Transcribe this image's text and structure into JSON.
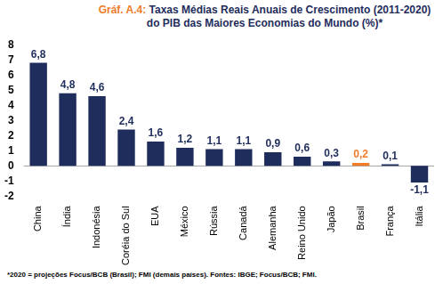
{
  "chart_data": {
    "type": "bar",
    "title": "Gráf. A.4: Taxas Médias Reais Anuais de Crescimento (2011-2020) do PIB das Maiores Economias do Mundo (%)*",
    "footnote": "*2020 = projeções Focus/BCB (Brasil); FMI (demais países). Fontes: IBGE; Focus/BCB; FMI.",
    "categories": [
      "China",
      "Índia",
      "Indonésia",
      "Coréia do Sul",
      "EUA",
      "México",
      "Rússia",
      "Canadá",
      "Alemanha",
      "Reino Unido",
      "Japão",
      "Brasil",
      "França",
      "Itália"
    ],
    "values": [
      6.8,
      4.8,
      4.6,
      2.4,
      1.6,
      1.2,
      1.1,
      1.1,
      0.9,
      0.6,
      0.3,
      0.2,
      0.1,
      -1.1
    ],
    "value_labels": [
      "6,8",
      "4,8",
      "4,6",
      "2,4",
      "1,6",
      "1,2",
      "1,1",
      "1,1",
      "0,9",
      "0,6",
      "0,3",
      "0,2",
      "0,1",
      "-1,1"
    ],
    "colors": [
      "#1f2d5c",
      "#1f2d5c",
      "#1f2d5c",
      "#1f2d5c",
      "#1f2d5c",
      "#1f2d5c",
      "#1f2d5c",
      "#1f2d5c",
      "#1f2d5c",
      "#1f2d5c",
      "#1f2d5c",
      "#f07c2a",
      "#1f2d5c",
      "#1f2d5c"
    ],
    "ylim": [
      -2,
      8
    ],
    "yticks": [
      -2,
      -1,
      0,
      1,
      2,
      3,
      4,
      5,
      6,
      7,
      8
    ],
    "grid": false,
    "data_labels": true
  }
}
